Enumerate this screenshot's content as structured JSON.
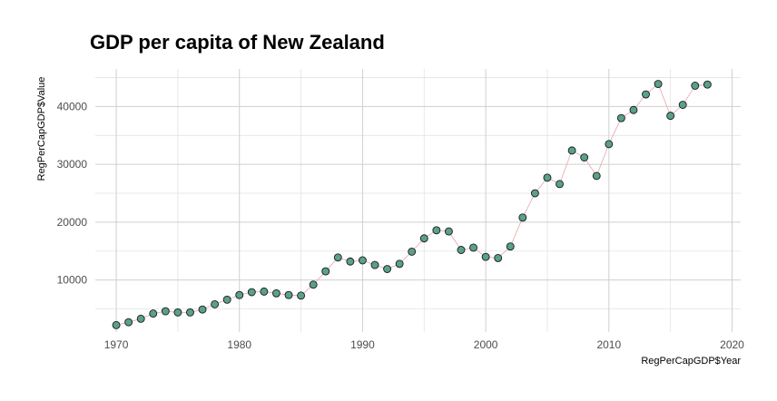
{
  "chart_data": {
    "type": "scatter",
    "title": "GDP per capita of New Zealand",
    "xlabel": "RegPerCapGDP$Year",
    "ylabel": "RegPerCapGDP$Value",
    "xlim": [
      1968.3,
      2020.7
    ],
    "ylim": [
      1000,
      46500
    ],
    "x_ticks": [
      1970,
      1980,
      1990,
      2000,
      2010,
      2020
    ],
    "x_minor": [
      1975,
      1985,
      1995,
      2005,
      2015
    ],
    "y_ticks": [
      10000,
      20000,
      30000,
      40000
    ],
    "y_minor": [
      5000,
      15000,
      25000,
      35000,
      45000
    ],
    "grid": true,
    "connect_points": true,
    "series": [
      {
        "x": [
          1970,
          1971,
          1972,
          1973,
          1974,
          1975,
          1976,
          1977,
          1978,
          1979,
          1980,
          1981,
          1982,
          1983,
          1984,
          1985,
          1986,
          1987,
          1988,
          1989,
          1990,
          1991,
          1992,
          1993,
          1994,
          1995,
          1996,
          1997,
          1998,
          1999,
          2000,
          2001,
          2002,
          2003,
          2004,
          2005,
          2006,
          2007,
          2008,
          2009,
          2010,
          2011,
          2012,
          2013,
          2014,
          2015,
          2016,
          2017,
          2018
        ],
        "y": [
          2200,
          2700,
          3300,
          4200,
          4600,
          4400,
          4400,
          4900,
          5800,
          6600,
          7400,
          7900,
          8000,
          7700,
          7400,
          7300,
          9200,
          11500,
          13900,
          13200,
          13400,
          12600,
          11900,
          12800,
          14900,
          17200,
          18600,
          18400,
          15200,
          15600,
          14000,
          13800,
          15800,
          20800,
          25000,
          27700,
          26600,
          32400,
          31200,
          28000,
          33500,
          38000,
          39400,
          42100,
          43900,
          38400,
          40300,
          43600,
          43800
        ],
        "marker_color": "#5aa08a",
        "line_color": "#e6a6a6"
      }
    ]
  }
}
